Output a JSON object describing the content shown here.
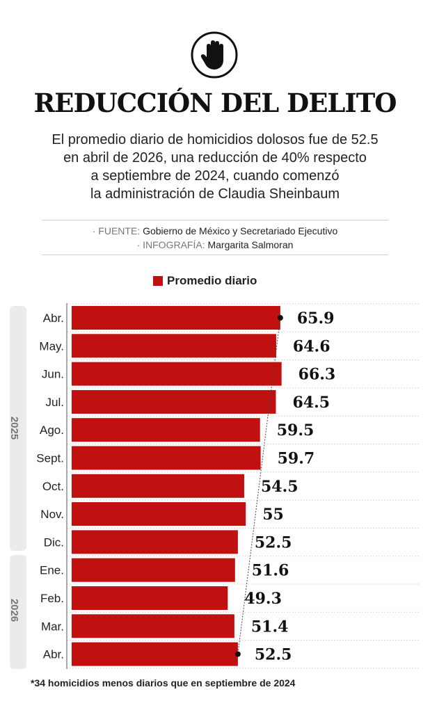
{
  "header": {
    "icon": "stop-hand-icon",
    "title": "REDUCCIÓN DEL DELITO",
    "subtitle_lines": [
      "El promedio diario de homicidios dolosos fue de 52.5",
      "en abril de 2026, una reducción de 40% respecto",
      "a septiembre de 2024, cuando comenzó",
      "la administración de Claudia Sheinbaum"
    ]
  },
  "credits": {
    "source_label": "· FUENTE:",
    "source_value": "Gobierno de México y Secretariado Ejecutivo",
    "infographic_label": "· INFOGRAFÍA:",
    "infographic_value": "Margarita Salmoran"
  },
  "legend": {
    "label": "Promedio diario",
    "color": "#c01010"
  },
  "years": [
    {
      "label": "2025",
      "months": 9
    },
    {
      "label": "2026",
      "months": 4
    }
  ],
  "chart_data": {
    "type": "bar",
    "orientation": "horizontal",
    "categories": [
      "Abr.",
      "May.",
      "Jun.",
      "Jul.",
      "Ago.",
      "Sept.",
      "Oct.",
      "Nov.",
      "Dic.",
      "Ene.",
      "Feb.",
      "Mar.",
      "Abr."
    ],
    "value_labels": [
      "65.9",
      "64.6",
      "66.3",
      "64.5",
      "59.5",
      "59.7",
      "54.5",
      "55",
      "52.5",
      "51.6",
      "49.3",
      "51.4",
      "52.5"
    ],
    "values": [
      65.9,
      64.6,
      66.3,
      64.5,
      59.5,
      59.7,
      54.5,
      55,
      52.5,
      51.6,
      49.3,
      51.4,
      52.5
    ],
    "series": [
      {
        "name": "Promedio diario",
        "color": "#c01010"
      }
    ],
    "trend_line": {
      "from_index": 0,
      "to_index": 12
    },
    "grid": true,
    "legend_position": "top"
  },
  "footnote": "*34 homicidios menos diarios que en septiembre de 2024"
}
